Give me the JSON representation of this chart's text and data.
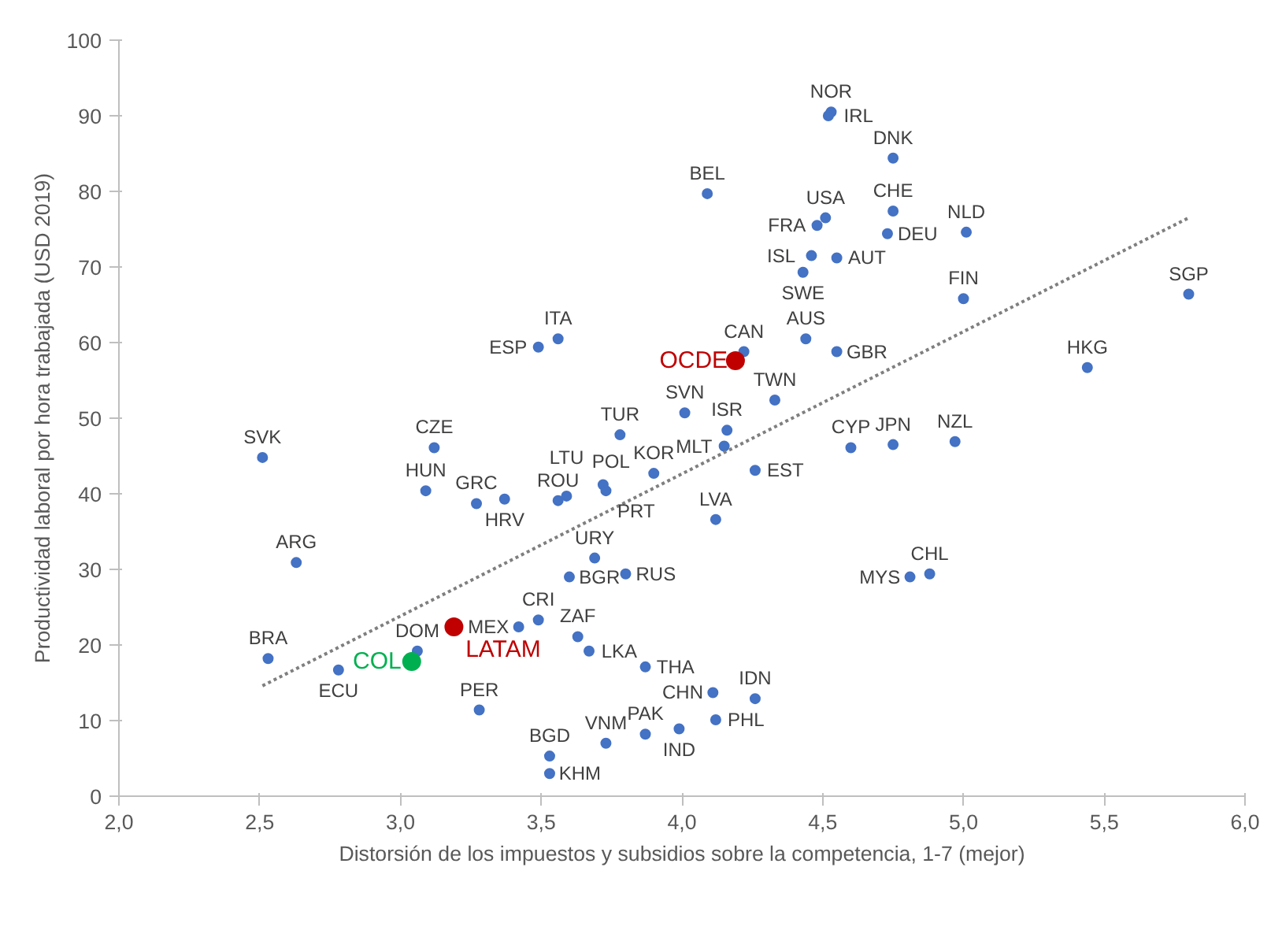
{
  "chart_data": {
    "type": "scatter",
    "xlabel": "Distorsión de los impuestos y subsidios sobre la competencia, 1-7 (mejor)",
    "ylabel": "Productividad laboral por hora trabajada (USD 2019)",
    "xlim": [
      2.0,
      6.0
    ],
    "xticks": [
      {
        "value": 2.0,
        "label": "2,0"
      },
      {
        "value": 2.5,
        "label": "2,5"
      },
      {
        "value": 3.0,
        "label": "3,0"
      },
      {
        "value": 3.5,
        "label": "3,5"
      },
      {
        "value": 4.0,
        "label": "4,0"
      },
      {
        "value": 4.5,
        "label": "4,5"
      },
      {
        "value": 5.0,
        "label": "5,0"
      },
      {
        "value": 5.5,
        "label": "5,5"
      },
      {
        "value": 6.0,
        "label": "6,0"
      }
    ],
    "ylim": [
      0,
      100
    ],
    "yticks": [
      0,
      10,
      20,
      30,
      40,
      50,
      60,
      70,
      80,
      90,
      100
    ],
    "grid": false,
    "marker": "circle",
    "series": [
      {
        "color": "#4472c4",
        "x": [
          2.51,
          2.63,
          2.53,
          2.78,
          3.06,
          3.28,
          3.12,
          3.09,
          3.27,
          3.37,
          3.56,
          3.59,
          3.72,
          3.73,
          3.69,
          3.6,
          3.8,
          3.42,
          3.49,
          3.63,
          3.67,
          3.87,
          3.53,
          3.53,
          3.73,
          3.87,
          3.78,
          3.9,
          4.01,
          4.16,
          4.15,
          4.26,
          4.12,
          4.33,
          4.6,
          4.75,
          4.97,
          4.88,
          4.81,
          4.11,
          4.26,
          3.99,
          4.12,
          4.53,
          4.52,
          4.75,
          4.09,
          4.75,
          4.51,
          4.48,
          4.55,
          4.73,
          4.46,
          4.43,
          5.01,
          5.0,
          5.8,
          5.44,
          3.56,
          3.49,
          4.22,
          4.44,
          4.55
        ],
        "values": [
          44.8,
          30.9,
          18.2,
          16.7,
          19.2,
          11.4,
          46.1,
          40.4,
          38.7,
          39.3,
          39.1,
          39.7,
          41.2,
          40.4,
          31.5,
          29.0,
          29.4,
          22.4,
          23.3,
          21.1,
          19.2,
          17.1,
          5.3,
          3.0,
          7.0,
          8.2,
          47.8,
          42.7,
          50.7,
          48.4,
          46.3,
          43.1,
          36.6,
          52.4,
          46.1,
          46.5,
          46.9,
          29.4,
          29.0,
          13.7,
          12.9,
          8.9,
          10.1,
          90.5,
          90.0,
          84.4,
          79.7,
          77.4,
          76.5,
          75.5,
          71.2,
          74.4,
          71.5,
          69.3,
          74.6,
          65.8,
          66.4,
          56.7,
          60.5,
          59.4,
          58.8,
          60.5,
          58.8
        ]
      },
      {
        "name": "OCDE",
        "color": "#c00000",
        "x": [
          4.19
        ],
        "values": [
          57.6
        ]
      },
      {
        "name": "LATAM",
        "color": "#c00000",
        "x": [
          3.19
        ],
        "values": [
          22.4
        ]
      },
      {
        "name": "COL",
        "color": "#00b050",
        "x": [
          3.04
        ],
        "values": [
          17.8
        ]
      },
      {
        "type": "line",
        "color": "#7f7f7f",
        "line_style": "dotted",
        "marker": "none",
        "x": [
          2.51,
          5.8
        ],
        "values": [
          14.6,
          76.5
        ]
      }
    ],
    "annotations": [
      {
        "text": "SVK",
        "x": 2.51,
        "y": 44.8
      },
      {
        "text": "ARG",
        "x": 2.63,
        "y": 30.9
      },
      {
        "text": "BRA",
        "x": 2.53,
        "y": 18.2
      },
      {
        "text": "ECU",
        "x": 2.78,
        "y": 16.7
      },
      {
        "text": "DOM",
        "x": 3.06,
        "y": 19.2
      },
      {
        "text": "PER",
        "x": 3.28,
        "y": 11.4
      },
      {
        "text": "CZE",
        "x": 3.12,
        "y": 46.1
      },
      {
        "text": "HUN",
        "x": 3.09,
        "y": 40.4
      },
      {
        "text": "GRC",
        "x": 3.27,
        "y": 38.7
      },
      {
        "text": "HRV",
        "x": 3.37,
        "y": 39.3
      },
      {
        "text": "ROU",
        "x": 3.56,
        "y": 39.1
      },
      {
        "text": "POL",
        "x": 3.59,
        "y": 39.7
      },
      {
        "text": "LTU",
        "x": 3.72,
        "y": 41.2
      },
      {
        "text": "PRT",
        "x": 3.73,
        "y": 40.4
      },
      {
        "text": "URY",
        "x": 3.69,
        "y": 31.5
      },
      {
        "text": "BGR",
        "x": 3.6,
        "y": 29.0
      },
      {
        "text": "RUS",
        "x": 3.8,
        "y": 29.4
      },
      {
        "text": "MEX",
        "x": 3.42,
        "y": 22.4
      },
      {
        "text": "CRI",
        "x": 3.49,
        "y": 23.3
      },
      {
        "text": "ZAF",
        "x": 3.63,
        "y": 21.1
      },
      {
        "text": "LKA",
        "x": 3.67,
        "y": 19.2
      },
      {
        "text": "THA",
        "x": 3.87,
        "y": 17.1
      },
      {
        "text": "BGD",
        "x": 3.53,
        "y": 5.3
      },
      {
        "text": "KHM",
        "x": 3.53,
        "y": 3.0
      },
      {
        "text": "VNM",
        "x": 3.73,
        "y": 7.0
      },
      {
        "text": "PAK",
        "x": 3.87,
        "y": 8.2
      },
      {
        "text": "TUR",
        "x": 3.78,
        "y": 47.8
      },
      {
        "text": "KOR",
        "x": 3.9,
        "y": 42.7
      },
      {
        "text": "SVN",
        "x": 4.01,
        "y": 50.7
      },
      {
        "text": "ISR",
        "x": 4.16,
        "y": 48.4
      },
      {
        "text": "MLT",
        "x": 4.15,
        "y": 46.3
      },
      {
        "text": "EST",
        "x": 4.26,
        "y": 43.1
      },
      {
        "text": "LVA",
        "x": 4.12,
        "y": 36.6
      },
      {
        "text": "TWN",
        "x": 4.33,
        "y": 52.4
      },
      {
        "text": "CYP",
        "x": 4.6,
        "y": 46.1
      },
      {
        "text": "JPN",
        "x": 4.75,
        "y": 46.5
      },
      {
        "text": "NZL",
        "x": 4.97,
        "y": 46.9
      },
      {
        "text": "CHL",
        "x": 4.88,
        "y": 29.4
      },
      {
        "text": "MYS",
        "x": 4.81,
        "y": 29.0
      },
      {
        "text": "CHN",
        "x": 4.11,
        "y": 13.7
      },
      {
        "text": "IDN",
        "x": 4.26,
        "y": 12.9
      },
      {
        "text": "IND",
        "x": 3.99,
        "y": 8.9
      },
      {
        "text": "PHL",
        "x": 4.12,
        "y": 10.1
      },
      {
        "text": "NOR",
        "x": 4.53,
        "y": 90.5
      },
      {
        "text": "IRL",
        "x": 4.52,
        "y": 90.0
      },
      {
        "text": "DNK",
        "x": 4.75,
        "y": 84.4
      },
      {
        "text": "BEL",
        "x": 4.09,
        "y": 79.7
      },
      {
        "text": "CHE",
        "x": 4.75,
        "y": 77.4
      },
      {
        "text": "USA",
        "x": 4.51,
        "y": 76.5
      },
      {
        "text": "FRA",
        "x": 4.48,
        "y": 75.5
      },
      {
        "text": "AUT",
        "x": 4.55,
        "y": 71.2
      },
      {
        "text": "DEU",
        "x": 4.73,
        "y": 74.4
      },
      {
        "text": "ISL",
        "x": 4.46,
        "y": 71.5
      },
      {
        "text": "SWE",
        "x": 4.43,
        "y": 69.3
      },
      {
        "text": "NLD",
        "x": 5.01,
        "y": 74.6
      },
      {
        "text": "FIN",
        "x": 5.0,
        "y": 65.8
      },
      {
        "text": "SGP",
        "x": 5.8,
        "y": 66.4
      },
      {
        "text": "HKG",
        "x": 5.44,
        "y": 56.7
      },
      {
        "text": "ITA",
        "x": 3.56,
        "y": 60.5
      },
      {
        "text": "ESP",
        "x": 3.49,
        "y": 59.4
      },
      {
        "text": "CAN",
        "x": 4.22,
        "y": 58.8
      },
      {
        "text": "AUS",
        "x": 4.44,
        "y": 60.5
      },
      {
        "text": "GBR",
        "x": 4.55,
        "y": 58.8
      }
    ]
  }
}
